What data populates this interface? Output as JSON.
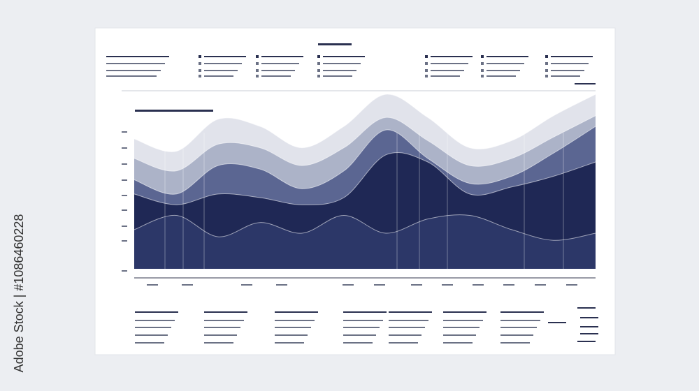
{
  "watermark": "Adobe Stock | #1086460228",
  "chart_data": {
    "type": "area",
    "categories": [
      null,
      null,
      null,
      null,
      null,
      null,
      null,
      null,
      null,
      null,
      null,
      null
    ],
    "ylim": [
      0,
      100
    ],
    "series": [
      {
        "color": "#dfe2ea",
        "values": [
          73,
          66,
          84,
          80,
          68,
          80,
          98,
          85,
          68,
          72,
          86,
          98
        ]
      },
      {
        "color": "#a9b0c6",
        "values": [
          62,
          55,
          70,
          68,
          58,
          68,
          85,
          72,
          58,
          62,
          74,
          86
        ]
      },
      {
        "color": "#56628f",
        "values": [
          50,
          42,
          58,
          56,
          45,
          55,
          78,
          62,
          48,
          52,
          65,
          80
        ]
      },
      {
        "color": "#1c2552",
        "values": [
          42,
          36,
          42,
          40,
          36,
          40,
          64,
          60,
          42,
          46,
          52,
          60
        ]
      },
      {
        "color": "#2f3a6c",
        "values": [
          22,
          30,
          18,
          26,
          20,
          30,
          20,
          28,
          30,
          22,
          16,
          20
        ]
      }
    ]
  }
}
